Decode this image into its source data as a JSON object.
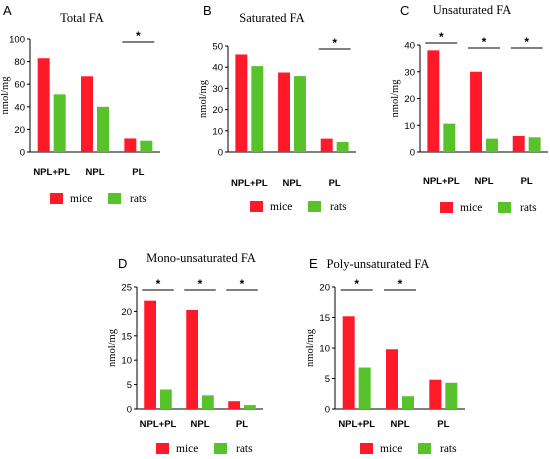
{
  "colors": {
    "mice": "#ff1a2a",
    "rats": "#57c22a"
  },
  "chart_data": [
    {
      "type": "bar",
      "panel": "A",
      "title": "Total FA",
      "ylabel": "nmol/mg",
      "categories": [
        "NPL+PL",
        "NPL",
        "PL"
      ],
      "series": [
        {
          "name": "mice",
          "values": [
            83,
            67,
            12
          ]
        },
        {
          "name": "rats",
          "values": [
            51,
            40,
            10
          ]
        }
      ],
      "ylim": [
        0,
        100
      ],
      "yticks": [
        "0",
        "20",
        "40",
        "60",
        "80",
        "100"
      ],
      "significance": [
        false,
        false,
        true
      ],
      "sig_label": "*",
      "legend": [
        "mice",
        "rats"
      ]
    },
    {
      "type": "bar",
      "panel": "B",
      "title": "Saturated FA",
      "ylabel": "nmol/mg",
      "categories": [
        "NPL+PL",
        "NPL",
        "PL"
      ],
      "series": [
        {
          "name": "mice",
          "values": [
            46,
            37.5,
            6.3
          ]
        },
        {
          "name": "rats",
          "values": [
            40.5,
            35.8,
            4.7
          ]
        }
      ],
      "ylim": [
        0,
        50
      ],
      "yticks": [
        "0",
        "10",
        "20",
        "30",
        "40",
        "50"
      ],
      "significance": [
        false,
        false,
        true
      ],
      "sig_label": "*",
      "legend": [
        "mice",
        "rats"
      ]
    },
    {
      "type": "bar",
      "panel": "C",
      "title": "Unsaturated FA",
      "ylabel": "nmol/mg",
      "categories": [
        "NPL+PL",
        "NPL",
        "PL"
      ],
      "series": [
        {
          "name": "mice",
          "values": [
            38,
            30,
            6
          ]
        },
        {
          "name": "rats",
          "values": [
            10.6,
            5,
            5.5
          ]
        }
      ],
      "ylim": [
        0,
        40
      ],
      "yticks": [
        "0",
        "10",
        "20",
        "30",
        "40"
      ],
      "significance": [
        true,
        true,
        true
      ],
      "sig_label": "*",
      "legend": [
        "mice",
        "rats"
      ]
    },
    {
      "type": "bar",
      "panel": "D",
      "title": "Mono-unsaturated FA",
      "ylabel": "nmol/mg",
      "categories": [
        "NPL+PL",
        "NPL",
        "PL"
      ],
      "series": [
        {
          "name": "mice",
          "values": [
            22.2,
            20.3,
            1.6
          ]
        },
        {
          "name": "rats",
          "values": [
            4,
            2.8,
            0.8
          ]
        }
      ],
      "ylim": [
        0,
        25
      ],
      "yticks": [
        "0",
        "5",
        "10",
        "15",
        "20",
        "25"
      ],
      "significance": [
        true,
        true,
        true
      ],
      "sig_label": "*",
      "legend": [
        "mice",
        "rats"
      ]
    },
    {
      "type": "bar",
      "panel": "E",
      "title": "Poly-unsaturated FA",
      "ylabel": "nmol/mg",
      "categories": [
        "NPL+PL",
        "NPL",
        "PL"
      ],
      "series": [
        {
          "name": "mice",
          "values": [
            15.2,
            9.8,
            4.8
          ]
        },
        {
          "name": "rats",
          "values": [
            6.8,
            2.1,
            4.3
          ]
        }
      ],
      "ylim": [
        0,
        20
      ],
      "yticks": [
        "0",
        "5",
        "10",
        "15",
        "20"
      ],
      "significance": [
        true,
        true,
        false
      ],
      "sig_label": "*",
      "legend": [
        "mice",
        "rats"
      ]
    }
  ]
}
